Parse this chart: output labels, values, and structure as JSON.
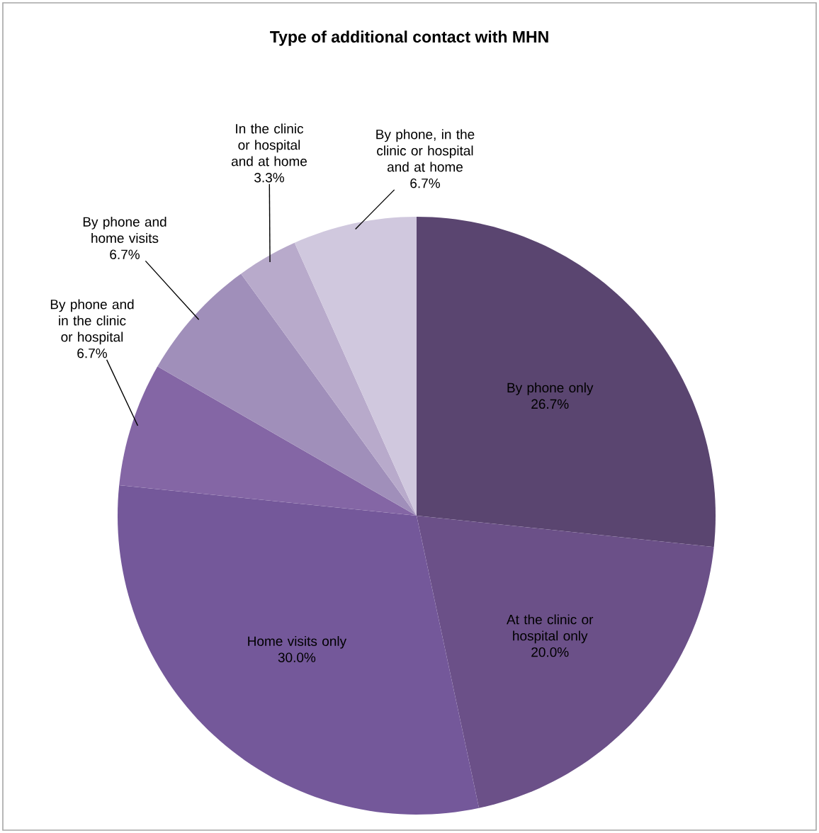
{
  "chart_data": {
    "type": "pie",
    "title": "Type of additional contact with MHN",
    "categories": [
      "By phone only",
      "At the clinic or hospital only",
      "Home visits only",
      "By phone and in the clinic or hospital",
      "By phone and home visits",
      "In the clinic or hospital and at home",
      "By phone, in the clinic or hospital and at home"
    ],
    "values": [
      26.7,
      20.0,
      30.0,
      6.7,
      6.7,
      3.3,
      6.7
    ],
    "value_labels": [
      "26.7%",
      "20.0%",
      "30.0%",
      "6.7%",
      "6.7%",
      "3.3%",
      "6.7%"
    ],
    "colors": [
      "#5a4570",
      "#6b5088",
      "#74589a",
      "#8466a5",
      "#a08fba",
      "#b8aacb",
      "#d0c8de"
    ]
  }
}
